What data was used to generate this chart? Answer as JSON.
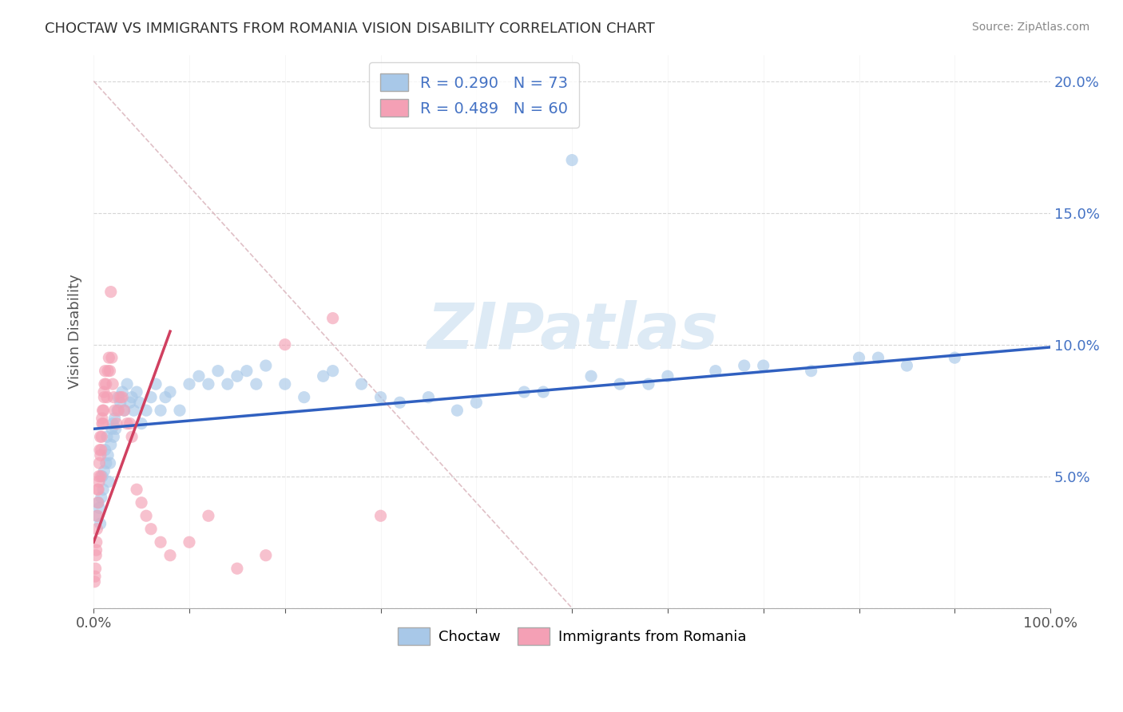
{
  "title": "CHOCTAW VS IMMIGRANTS FROM ROMANIA VISION DISABILITY CORRELATION CHART",
  "source": "Source: ZipAtlas.com",
  "ylabel": "Vision Disability",
  "xlim": [
    0,
    100
  ],
  "ylim": [
    0,
    21
  ],
  "yticks": [
    0,
    5,
    10,
    15,
    20
  ],
  "ytick_labels": [
    "",
    "5.0%",
    "10.0%",
    "15.0%",
    "20.0%"
  ],
  "xtick_labels": [
    "0.0%",
    "",
    "",
    "",
    "",
    "",
    "",
    "",
    "",
    "",
    "100.0%"
  ],
  "legend_r_blue": "R = 0.290",
  "legend_n_blue": "N = 73",
  "legend_r_pink": "R = 0.489",
  "legend_n_pink": "N = 60",
  "blue_color": "#a8c8e8",
  "pink_color": "#f4a0b5",
  "trend_blue_color": "#3060c0",
  "trend_pink_color": "#d04060",
  "ref_line_color": "#d8b0b8",
  "choctaw_x": [
    0.3,
    0.5,
    0.6,
    0.7,
    0.8,
    0.9,
    1.0,
    1.1,
    1.2,
    1.3,
    1.4,
    1.5,
    1.6,
    1.7,
    1.8,
    1.9,
    2.0,
    2.1,
    2.2,
    2.3,
    2.5,
    2.6,
    2.8,
    3.0,
    3.2,
    3.5,
    3.8,
    4.0,
    4.2,
    4.5,
    4.8,
    5.0,
    5.5,
    6.0,
    6.5,
    7.0,
    7.5,
    8.0,
    9.0,
    10.0,
    11.0,
    12.0,
    13.0,
    14.0,
    15.0,
    16.0,
    17.0,
    18.0,
    20.0,
    22.0,
    24.0,
    25.0,
    28.0,
    30.0,
    32.0,
    35.0,
    38.0,
    40.0,
    45.0,
    50.0,
    55.0,
    60.0,
    65.0,
    70.0,
    75.0,
    80.0,
    85.0,
    90.0,
    47.0,
    52.0,
    58.0,
    68.0,
    82.0
  ],
  "choctaw_y": [
    3.5,
    4.0,
    3.8,
    3.2,
    4.2,
    5.0,
    4.5,
    5.2,
    6.0,
    5.5,
    6.5,
    5.8,
    4.8,
    5.5,
    6.2,
    6.8,
    7.0,
    6.5,
    7.2,
    6.8,
    7.5,
    8.0,
    7.8,
    8.2,
    7.5,
    8.5,
    7.8,
    8.0,
    7.5,
    8.2,
    7.8,
    7.0,
    7.5,
    8.0,
    8.5,
    7.5,
    8.0,
    8.2,
    7.5,
    8.5,
    8.8,
    8.5,
    9.0,
    8.5,
    8.8,
    9.0,
    8.5,
    9.2,
    8.5,
    8.0,
    8.8,
    9.0,
    8.5,
    8.0,
    7.8,
    8.0,
    7.5,
    7.8,
    8.2,
    17.0,
    8.5,
    8.8,
    9.0,
    9.2,
    9.0,
    9.5,
    9.2,
    9.5,
    8.2,
    8.8,
    8.5,
    9.2,
    9.5
  ],
  "romania_x": [
    0.1,
    0.2,
    0.25,
    0.3,
    0.35,
    0.4,
    0.45,
    0.5,
    0.55,
    0.6,
    0.65,
    0.7,
    0.75,
    0.8,
    0.85,
    0.9,
    0.95,
    1.0,
    1.05,
    1.1,
    1.15,
    1.2,
    1.3,
    1.4,
    1.5,
    1.6,
    1.7,
    1.8,
    1.9,
    2.0,
    2.1,
    2.2,
    2.4,
    2.6,
    2.8,
    3.0,
    3.2,
    3.5,
    3.8,
    4.0,
    4.5,
    5.0,
    5.5,
    6.0,
    7.0,
    8.0,
    10.0,
    12.0,
    15.0,
    18.0,
    20.0,
    25.0,
    30.0,
    0.15,
    0.28,
    0.42,
    0.58,
    0.72,
    0.88,
    1.08
  ],
  "romania_y": [
    1.0,
    1.5,
    2.0,
    2.5,
    3.0,
    3.5,
    4.0,
    4.5,
    5.0,
    5.5,
    6.0,
    6.5,
    5.0,
    6.0,
    6.5,
    7.0,
    7.5,
    7.0,
    7.5,
    8.0,
    8.5,
    9.0,
    8.5,
    8.0,
    9.0,
    9.5,
    9.0,
    12.0,
    9.5,
    8.5,
    8.0,
    7.5,
    7.0,
    7.5,
    8.0,
    8.0,
    7.5,
    7.0,
    7.0,
    6.5,
    4.5,
    4.0,
    3.5,
    3.0,
    2.5,
    2.0,
    2.5,
    3.5,
    1.5,
    2.0,
    10.0,
    11.0,
    3.5,
    1.2,
    2.2,
    4.5,
    4.8,
    5.8,
    7.2,
    8.2
  ],
  "trend_blue_x0": 0,
  "trend_blue_y0": 6.8,
  "trend_blue_x1": 100,
  "trend_blue_y1": 9.9,
  "trend_pink_x0": 0,
  "trend_pink_y0": 2.5,
  "trend_pink_x1": 8.0,
  "trend_pink_y1": 10.5,
  "ref_line_x0": 0,
  "ref_line_y0": 20,
  "ref_line_x1": 50,
  "ref_line_y1": 0
}
